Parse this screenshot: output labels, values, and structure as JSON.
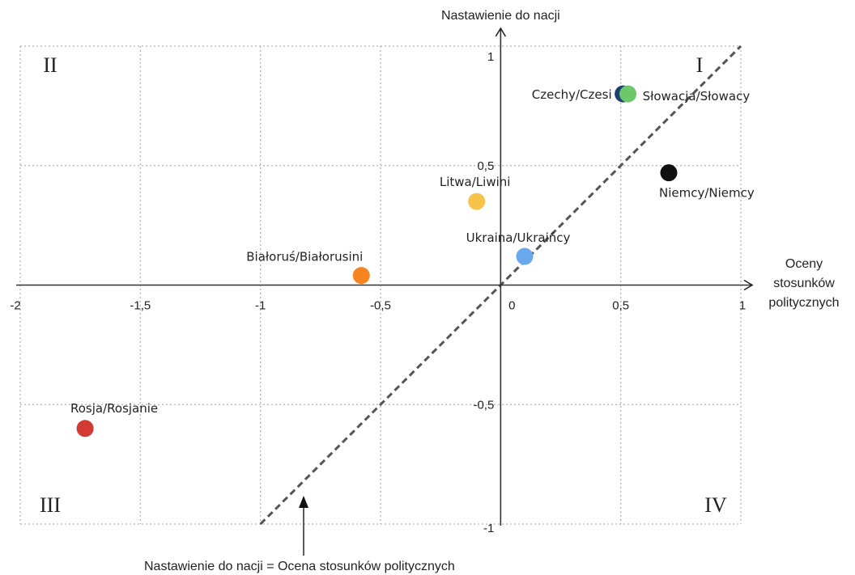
{
  "chart_data": {
    "type": "scatter",
    "title": "",
    "xlabel": [
      "Oceny",
      "stosunków",
      "politycznych"
    ],
    "ylabel": "Nastawienie do nacji",
    "xlim": [
      -2,
      1
    ],
    "ylim": [
      -1,
      1
    ],
    "x_ticks": [
      {
        "value": -2,
        "label": "-2"
      },
      {
        "value": -1.5,
        "label": "-1,5"
      },
      {
        "value": -1,
        "label": "-1"
      },
      {
        "value": -0.5,
        "label": "-0,5"
      },
      {
        "value": 0,
        "label": "0"
      },
      {
        "value": 0.5,
        "label": "0,5"
      },
      {
        "value": 1,
        "label": "1"
      }
    ],
    "y_ticks": [
      {
        "value": 1,
        "label": "1"
      },
      {
        "value": 0.5,
        "label": "0,5"
      },
      {
        "value": -0.5,
        "label": "-0,5"
      },
      {
        "value": -1,
        "label": "-1"
      }
    ],
    "grid": true,
    "points": [
      {
        "label": "Czechy/Czesi",
        "x": 0.51,
        "y": 0.8,
        "color": "#1f3f6e"
      },
      {
        "label": "Słowacja/Słowacy",
        "x": 0.53,
        "y": 0.8,
        "color": "#6dc86a"
      },
      {
        "label": "Niemcy/Niemcy",
        "x": 0.7,
        "y": 0.47,
        "color": "#111111"
      },
      {
        "label": "Litwa/Liwini",
        "x": -0.1,
        "y": 0.35,
        "color": "#f7c34a"
      },
      {
        "label": "Ukraina/Ukraińcy",
        "x": 0.1,
        "y": 0.12,
        "color": "#6aa8ee"
      },
      {
        "label": "Białoruś/Białorusini",
        "x": -0.58,
        "y": 0.04,
        "color": "#f7851f"
      },
      {
        "label": "Rosja/Rosjanie",
        "x": -1.73,
        "y": -0.6,
        "color": "#d43a34"
      }
    ],
    "quadrants": [
      {
        "label": "I",
        "position": "top-right"
      },
      {
        "label": "II",
        "position": "top-left"
      },
      {
        "label": "III",
        "position": "bottom-left"
      },
      {
        "label": "IV",
        "position": "bottom-right"
      }
    ],
    "reference_line": {
      "label": "Nastawienie do nacji = Ocena stosunków politycznych",
      "x": [
        -1,
        1
      ],
      "y": [
        -1,
        1
      ],
      "style": "dashed"
    }
  }
}
